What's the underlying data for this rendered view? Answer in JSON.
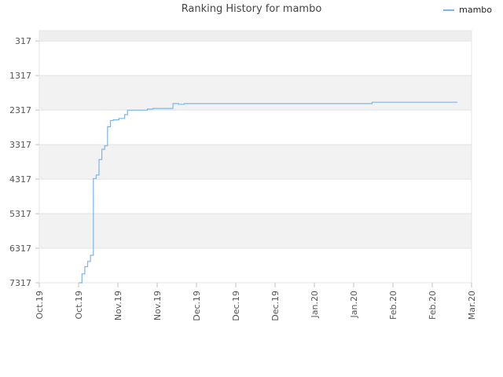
{
  "chart_data": {
    "type": "line",
    "title": "Ranking History for mambo",
    "xlabel": "",
    "ylabel": "",
    "y_inverted": true,
    "ylim": [
      7317,
      17
    ],
    "y_ticks": [
      317,
      1317,
      2317,
      3317,
      4317,
      5317,
      6317,
      7317
    ],
    "x_range": [
      "2019-10-01",
      "2020-03-01"
    ],
    "x_ticks": [
      "Oct.19",
      "Oct.19",
      "Nov.19",
      "Nov.19",
      "Dec.19",
      "Dec.19",
      "Dec.19",
      "Jan.20",
      "Jan.20",
      "Feb.20",
      "Feb.20",
      "Mar.20"
    ],
    "grid": true,
    "legend_position": "top-right",
    "series": [
      {
        "name": "mambo",
        "color": "#7cb5ec",
        "points": [
          [
            "2019-10-15",
            7317
          ],
          [
            "2019-10-16",
            7060
          ],
          [
            "2019-10-17",
            6850
          ],
          [
            "2019-10-18",
            6700
          ],
          [
            "2019-10-19",
            6520
          ],
          [
            "2019-10-20",
            4300
          ],
          [
            "2019-10-21",
            4200
          ],
          [
            "2019-10-22",
            3750
          ],
          [
            "2019-10-23",
            3450
          ],
          [
            "2019-10-24",
            3350
          ],
          [
            "2019-10-25",
            2800
          ],
          [
            "2019-10-26",
            2620
          ],
          [
            "2019-10-27",
            2600
          ],
          [
            "2019-10-29",
            2560
          ],
          [
            "2019-10-31",
            2450
          ],
          [
            "2019-11-01",
            2320
          ],
          [
            "2019-11-05",
            2320
          ],
          [
            "2019-11-08",
            2290
          ],
          [
            "2019-11-10",
            2270
          ],
          [
            "2019-11-14",
            2270
          ],
          [
            "2019-11-17",
            2130
          ],
          [
            "2019-11-19",
            2150
          ],
          [
            "2019-11-21",
            2130
          ],
          [
            "2019-11-25",
            2130
          ],
          [
            "2019-12-15",
            2130
          ],
          [
            "2020-01-15",
            2130
          ],
          [
            "2020-01-24",
            2130
          ],
          [
            "2020-01-26",
            2090
          ],
          [
            "2020-02-10",
            2090
          ],
          [
            "2020-02-25",
            2090
          ]
        ]
      }
    ]
  }
}
